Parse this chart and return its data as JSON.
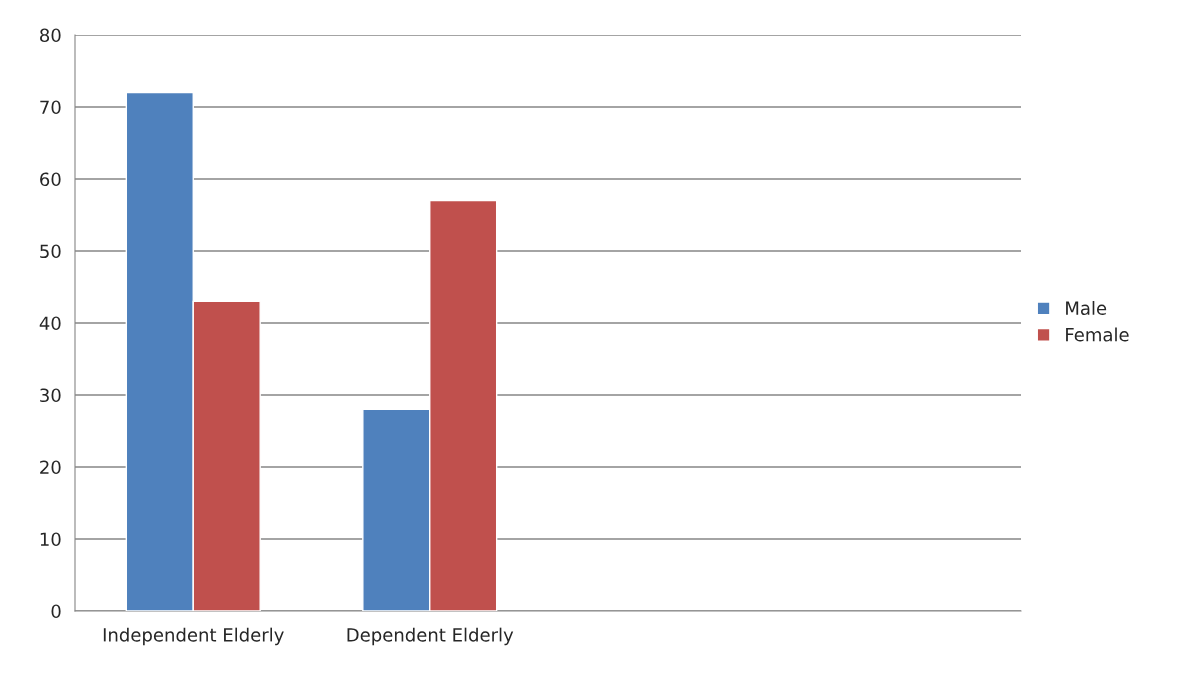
{
  "chart_data": {
    "type": "bar",
    "categories": [
      "Independent Elderly",
      "Dependent Elderly",
      null,
      null
    ],
    "series": [
      {
        "name": "Male",
        "color": "#4f81bd",
        "values": [
          72,
          28,
          null,
          null
        ]
      },
      {
        "name": "Female",
        "color": "#c0504d",
        "values": [
          43,
          57,
          null,
          null
        ]
      }
    ],
    "ylim": [
      0,
      80
    ],
    "yticks": [
      0,
      10,
      20,
      30,
      40,
      50,
      60,
      70,
      80
    ],
    "grid": "y",
    "legend": "right"
  }
}
